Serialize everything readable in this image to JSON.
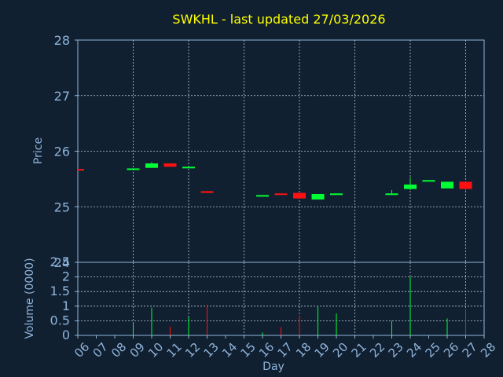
{
  "chart_data": [
    {
      "type": "candlestick",
      "title": "SWKHL - last updated 27/03/2026",
      "ylabel": "Price",
      "xlabel": "",
      "ylim": [
        24,
        28
      ],
      "y_ticks": [
        "24",
        "25",
        "26",
        "27",
        "28"
      ],
      "x": [
        "06",
        "07",
        "08",
        "09",
        "10",
        "11",
        "12",
        "13",
        "14",
        "15",
        "16",
        "17",
        "18",
        "19",
        "20",
        "21",
        "22",
        "23",
        "24",
        "25",
        "26",
        "27",
        "28"
      ],
      "grid": true,
      "colors": {
        "up": "#00ff33",
        "down": "#ff1111",
        "background": "#102031",
        "axis": "#8fb3d9",
        "title": "#ffff00"
      },
      "candles": [
        {
          "day": "06",
          "open": 25.68,
          "close": 25.67,
          "high": 25.68,
          "low": 25.67
        },
        {
          "day": "09",
          "open": 25.67,
          "close": 25.69,
          "high": 25.69,
          "low": 25.66
        },
        {
          "day": "10",
          "open": 25.7,
          "close": 25.78,
          "high": 25.8,
          "low": 25.7
        },
        {
          "day": "11",
          "open": 25.78,
          "close": 25.72,
          "high": 25.78,
          "low": 25.72
        },
        {
          "day": "12",
          "open": 25.7,
          "close": 25.72,
          "high": 25.72,
          "low": 25.7
        },
        {
          "day": "13",
          "open": 25.28,
          "close": 25.25,
          "high": 25.28,
          "low": 25.25
        },
        {
          "day": "16",
          "open": 25.19,
          "close": 25.21,
          "high": 25.21,
          "low": 25.19
        },
        {
          "day": "17",
          "open": 25.24,
          "close": 25.23,
          "high": 25.24,
          "low": 25.23
        },
        {
          "day": "18",
          "open": 25.25,
          "close": 25.15,
          "high": 25.25,
          "low": 25.15
        },
        {
          "day": "19",
          "open": 25.13,
          "close": 25.23,
          "high": 25.23,
          "low": 25.13
        },
        {
          "day": "20",
          "open": 25.22,
          "close": 25.24,
          "high": 25.24,
          "low": 25.22
        },
        {
          "day": "23",
          "open": 25.22,
          "close": 25.24,
          "high": 25.3,
          "low": 25.22
        },
        {
          "day": "24",
          "open": 25.32,
          "close": 25.4,
          "high": 25.53,
          "low": 25.3
        },
        {
          "day": "25",
          "open": 25.46,
          "close": 25.48,
          "high": 25.48,
          "low": 25.46
        },
        {
          "day": "26",
          "open": 25.33,
          "close": 25.45,
          "high": 25.45,
          "low": 25.33
        },
        {
          "day": "27",
          "open": 25.45,
          "close": 25.32,
          "high": 25.45,
          "low": 25.29
        }
      ]
    },
    {
      "type": "bar",
      "title": "",
      "ylabel": "Volume (0000)",
      "xlabel": "Day",
      "ylim": [
        0,
        2.5
      ],
      "y_ticks": [
        "0",
        "0.5",
        "1",
        "1.5",
        "2",
        "2.5"
      ],
      "x": [
        "06",
        "07",
        "08",
        "09",
        "10",
        "11",
        "12",
        "13",
        "14",
        "15",
        "16",
        "17",
        "18",
        "19",
        "20",
        "21",
        "22",
        "23",
        "24",
        "25",
        "26",
        "27",
        "28"
      ],
      "grid": true,
      "bars": [
        {
          "day": "09",
          "value": 0.45,
          "color": "#00ff33"
        },
        {
          "day": "10",
          "value": 0.95,
          "color": "#00ff33"
        },
        {
          "day": "11",
          "value": 0.3,
          "color": "#ff1111"
        },
        {
          "day": "12",
          "value": 0.62,
          "color": "#00ff33"
        },
        {
          "day": "13",
          "value": 1.05,
          "color": "#ff1111"
        },
        {
          "day": "16",
          "value": 0.1,
          "color": "#00ff33"
        },
        {
          "day": "17",
          "value": 0.28,
          "color": "#ff1111"
        },
        {
          "day": "18",
          "value": 0.68,
          "color": "#ff1111"
        },
        {
          "day": "19",
          "value": 0.98,
          "color": "#00ff33"
        },
        {
          "day": "20",
          "value": 0.75,
          "color": "#00ff33"
        },
        {
          "day": "23",
          "value": 0.5,
          "color": "#00ff33"
        },
        {
          "day": "24",
          "value": 2.0,
          "color": "#00ff33"
        },
        {
          "day": "26",
          "value": 0.58,
          "color": "#00ff33"
        },
        {
          "day": "27",
          "value": 0.88,
          "color": "#ff1111"
        }
      ]
    }
  ]
}
